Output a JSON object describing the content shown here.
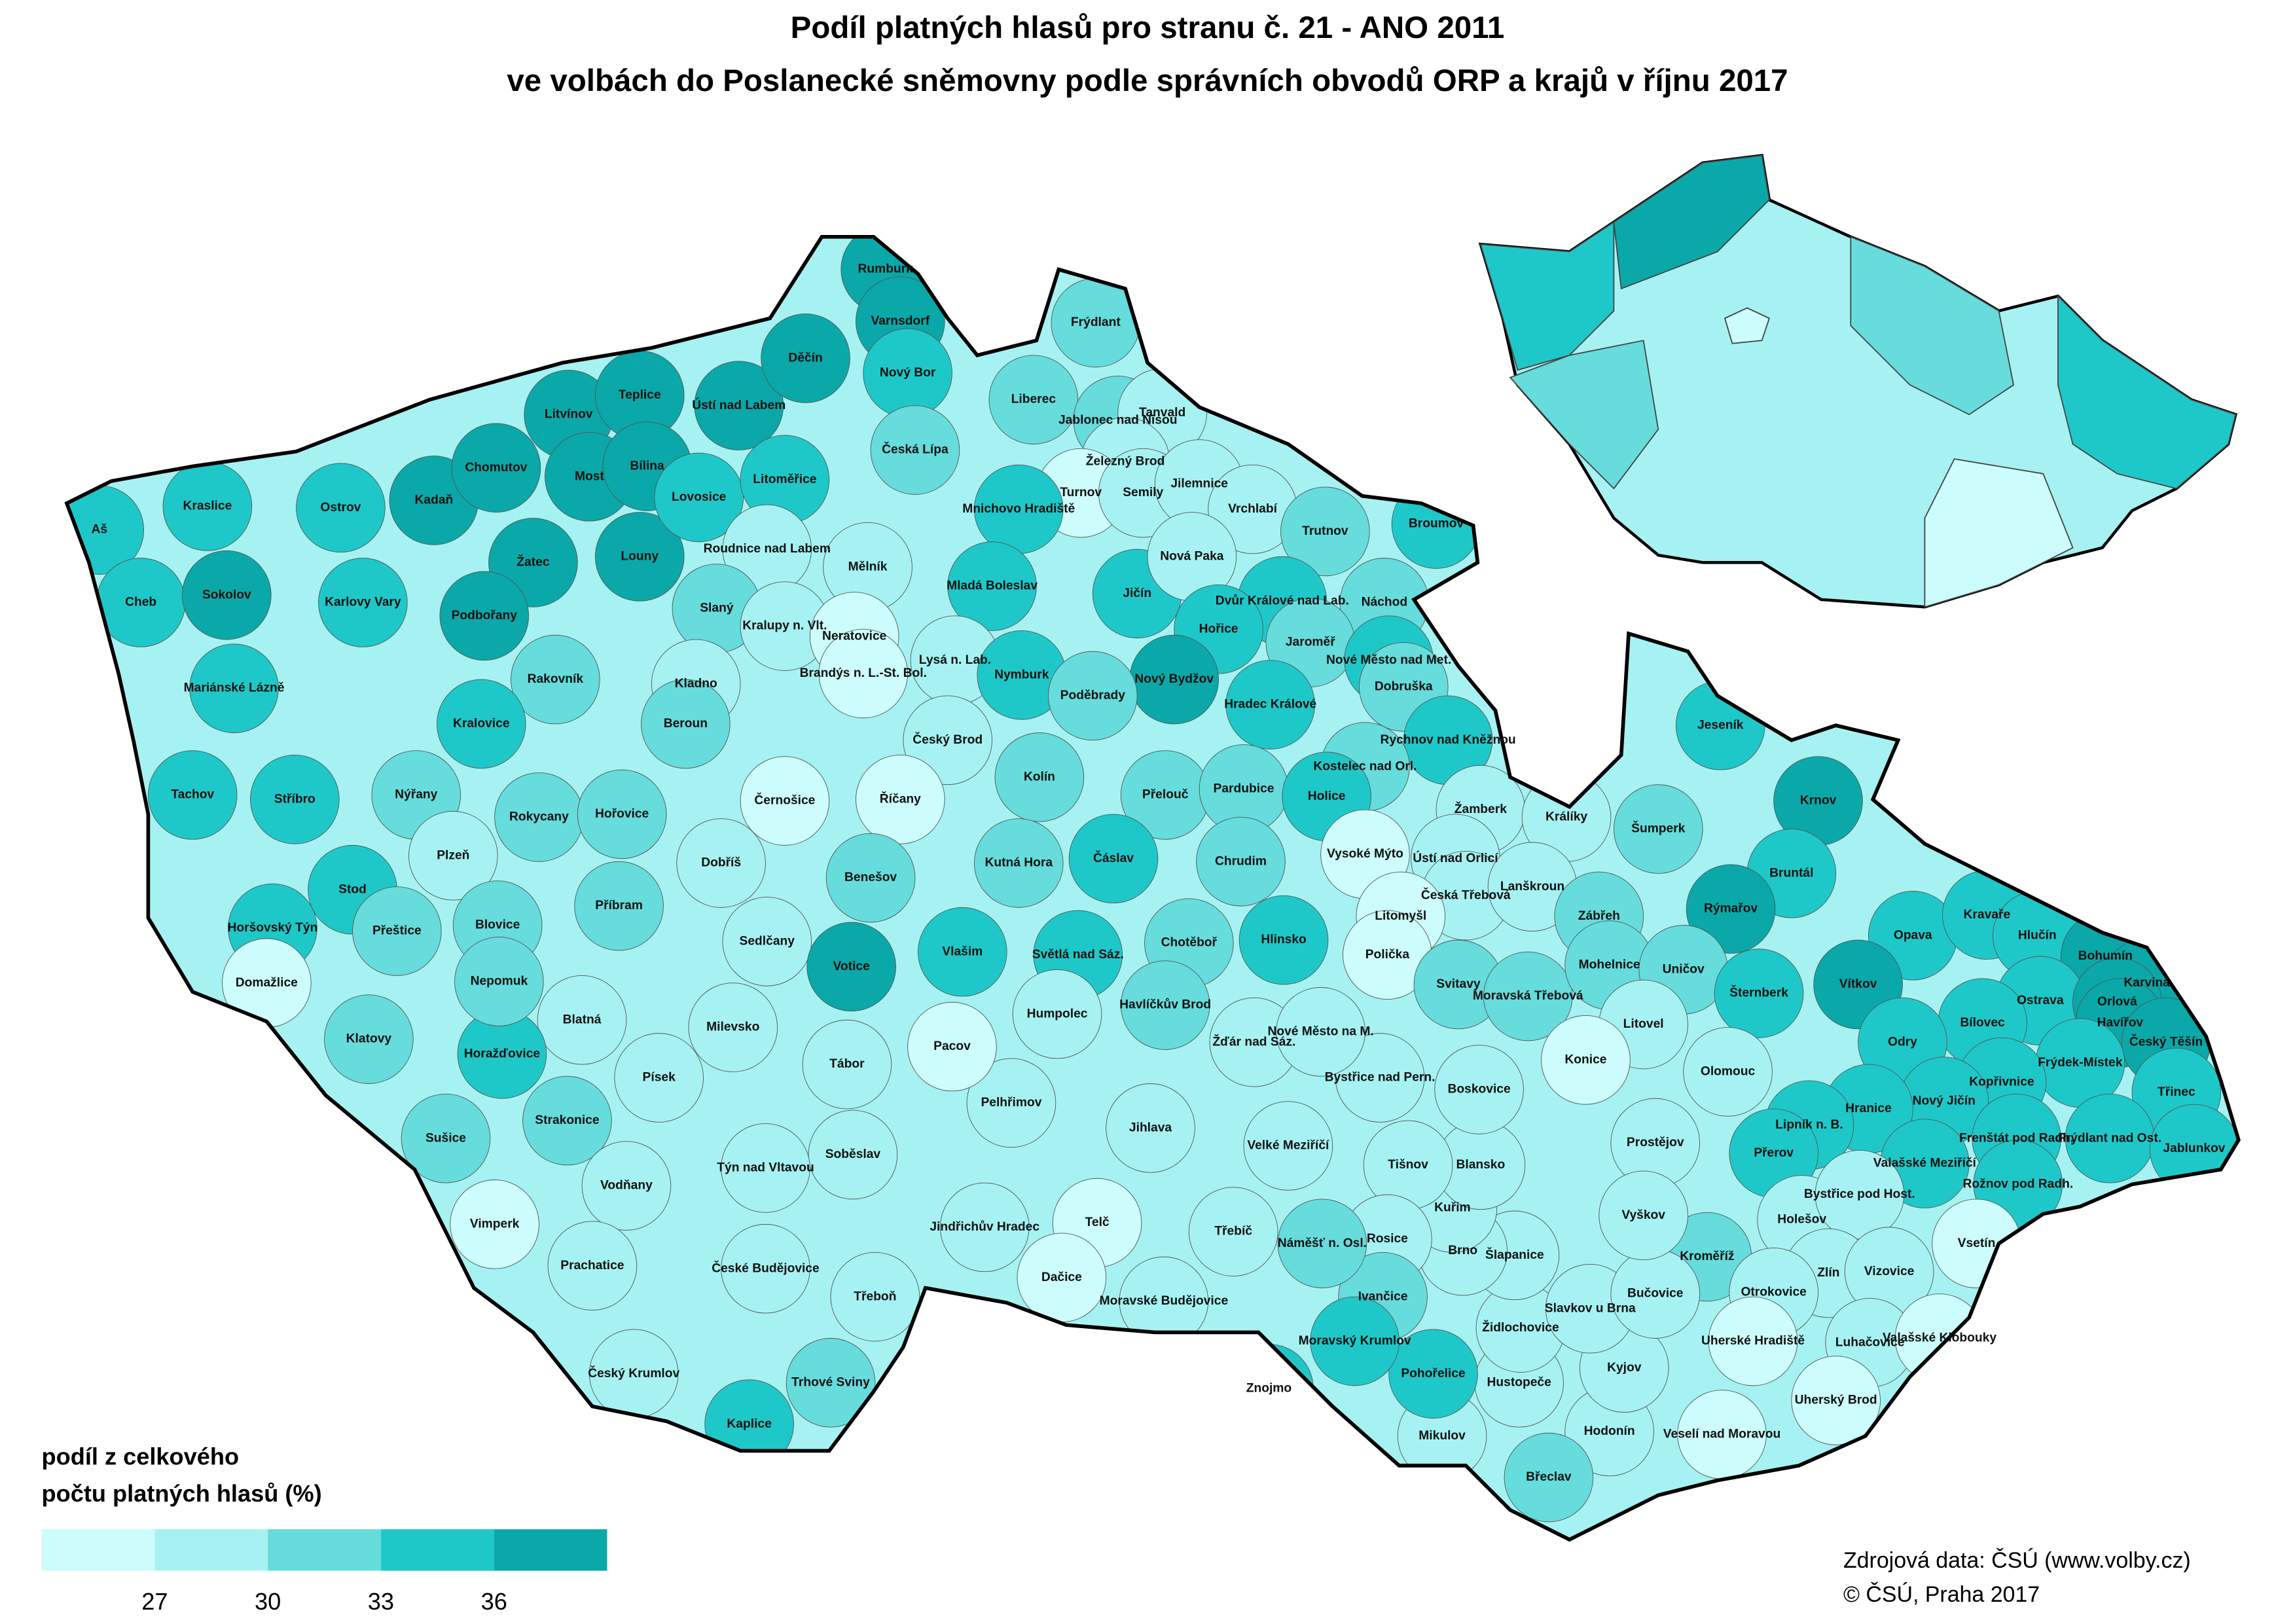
{
  "title": [
    "Podíl platných hlasů pro stranu č. 21 - ANO 2011",
    "ve volbách do Poslanecké sněmovny podle správních obvodů ORP a krajů v říjnu 2017"
  ],
  "legend": {
    "title": [
      "podíl z celkového",
      "počtu platných hlasů (%)"
    ],
    "colors": [
      "#ccfcfc",
      "#a6f2f2",
      "#66dcdc",
      "#1ec8c8",
      "#0aa8a8"
    ],
    "lim": [
      24,
      39
    ],
    "ticks": [
      27,
      30,
      33,
      36
    ]
  },
  "source": [
    "Zdrojová data: ČSÚ (www.volby.cz)",
    "© ČSÚ, Praha 2017"
  ],
  "orp": [
    {
      "name": "Aš",
      "color": "#1ec8c8"
    },
    {
      "name": "Cheb",
      "color": "#1ec8c8"
    },
    {
      "name": "Kraslice",
      "color": "#1ec8c8"
    },
    {
      "name": "Sokolov",
      "color": "#0aa8a8"
    },
    {
      "name": "Ostrov",
      "color": "#1ec8c8"
    },
    {
      "name": "Karlovy Vary",
      "color": "#1ec8c8"
    },
    {
      "name": "Mariánské Lázně",
      "color": "#1ec8c8"
    },
    {
      "name": "Kadaň",
      "color": "#0aa8a8"
    },
    {
      "name": "Chomutov",
      "color": "#0aa8a8"
    },
    {
      "name": "Litvínov",
      "color": "#0aa8a8"
    },
    {
      "name": "Most",
      "color": "#0aa8a8"
    },
    {
      "name": "Teplice",
      "color": "#0aa8a8"
    },
    {
      "name": "Bílina",
      "color": "#0aa8a8"
    },
    {
      "name": "Ústí nad Labem",
      "color": "#0aa8a8"
    },
    {
      "name": "Děčín",
      "color": "#0aa8a8"
    },
    {
      "name": "Rumburk",
      "color": "#0aa8a8"
    },
    {
      "name": "Varnsdorf",
      "color": "#0aa8a8"
    },
    {
      "name": "Žatec",
      "color": "#0aa8a8"
    },
    {
      "name": "Louny",
      "color": "#0aa8a8"
    },
    {
      "name": "Lovosice",
      "color": "#1ec8c8"
    },
    {
      "name": "Litoměřice",
      "color": "#1ec8c8"
    },
    {
      "name": "Podbořany",
      "color": "#0aa8a8"
    },
    {
      "name": "Roudnice nad Labem",
      "color": "#a6f2f2"
    },
    {
      "name": "Mělník",
      "color": "#a6f2f2"
    },
    {
      "name": "Nový Bor",
      "color": "#1ec8c8"
    },
    {
      "name": "Česká Lípa",
      "color": "#66dcdc"
    },
    {
      "name": "Liberec",
      "color": "#66dcdc"
    },
    {
      "name": "Jablonec nad Nisou",
      "color": "#66dcdc"
    },
    {
      "name": "Frýdlant",
      "color": "#66dcdc"
    },
    {
      "name": "Tanvald",
      "color": "#a6f2f2"
    },
    {
      "name": "Železný Brod",
      "color": "#a6f2f2"
    },
    {
      "name": "Turnov",
      "color": "#ccfcfc"
    },
    {
      "name": "Semily",
      "color": "#a6f2f2"
    },
    {
      "name": "Jilemnice",
      "color": "#a6f2f2"
    },
    {
      "name": "Vrchlabí",
      "color": "#a6f2f2"
    },
    {
      "name": "Trutnov",
      "color": "#66dcdc"
    },
    {
      "name": "Broumov",
      "color": "#1ec8c8"
    },
    {
      "name": "Mnichovo Hradiště",
      "color": "#1ec8c8"
    },
    {
      "name": "Mladá Boleslav",
      "color": "#1ec8c8"
    },
    {
      "name": "Jičín",
      "color": "#1ec8c8"
    },
    {
      "name": "Nová Paka",
      "color": "#a6f2f2"
    },
    {
      "name": "Dvůr Králové nad Lab.",
      "color": "#1ec8c8"
    },
    {
      "name": "Náchod",
      "color": "#66dcdc"
    },
    {
      "name": "Jaroměř",
      "color": "#66dcdc"
    },
    {
      "name": "Hořice",
      "color": "#1ec8c8"
    },
    {
      "name": "Nové Město nad Met.",
      "color": "#1ec8c8"
    },
    {
      "name": "Dobruška",
      "color": "#66dcdc"
    },
    {
      "name": "Nový Bydžov",
      "color": "#0aa8a8"
    },
    {
      "name": "Hradec Králové",
      "color": "#1ec8c8"
    },
    {
      "name": "Rychnov nad Kněžnou",
      "color": "#1ec8c8"
    },
    {
      "name": "Kostelec nad Orl.",
      "color": "#66dcdc"
    },
    {
      "name": "Slaný",
      "color": "#66dcdc"
    },
    {
      "name": "Kralupy n. Vlt.",
      "color": "#a6f2f2"
    },
    {
      "name": "Neratovice",
      "color": "#ccfcfc"
    },
    {
      "name": "Brandýs n. L.-St. Bol.",
      "color": "#ccfcfc"
    },
    {
      "name": "Lysá n. Lab.",
      "color": "#a6f2f2"
    },
    {
      "name": "Nymburk",
      "color": "#1ec8c8"
    },
    {
      "name": "Poděbrady",
      "color": "#66dcdc"
    },
    {
      "name": "Rakovník",
      "color": "#66dcdc"
    },
    {
      "name": "Kladno",
      "color": "#a6f2f2"
    },
    {
      "name": "Český Brod",
      "color": "#a6f2f2"
    },
    {
      "name": "Kralovice",
      "color": "#1ec8c8"
    },
    {
      "name": "Beroun",
      "color": "#66dcdc"
    },
    {
      "name": "Kolín",
      "color": "#66dcdc"
    },
    {
      "name": "Černošice",
      "color": "#ccfcfc"
    },
    {
      "name": "Říčany",
      "color": "#ccfcfc"
    },
    {
      "name": "Přelouč",
      "color": "#66dcdc"
    },
    {
      "name": "Pardubice",
      "color": "#66dcdc"
    },
    {
      "name": "Holice",
      "color": "#1ec8c8"
    },
    {
      "name": "Žamberk",
      "color": "#a6f2f2"
    },
    {
      "name": "Králíky",
      "color": "#a6f2f2"
    },
    {
      "name": "Vysoké Mýto",
      "color": "#ccfcfc"
    },
    {
      "name": "Ústí nad Orlicí",
      "color": "#a6f2f2"
    },
    {
      "name": "Chrudim",
      "color": "#66dcdc"
    },
    {
      "name": "Česká Třebová",
      "color": "#a6f2f2"
    },
    {
      "name": "Lanškroun",
      "color": "#a6f2f2"
    },
    {
      "name": "Litomyšl",
      "color": "#ccfcfc"
    },
    {
      "name": "Tachov",
      "color": "#1ec8c8"
    },
    {
      "name": "Stříbro",
      "color": "#1ec8c8"
    },
    {
      "name": "Nýřany",
      "color": "#66dcdc"
    },
    {
      "name": "Rokycany",
      "color": "#66dcdc"
    },
    {
      "name": "Hořovice",
      "color": "#66dcdc"
    },
    {
      "name": "Dobříš",
      "color": "#a6f2f2"
    },
    {
      "name": "Plzeň",
      "color": "#a6f2f2"
    },
    {
      "name": "Stod",
      "color": "#1ec8c8"
    },
    {
      "name": "Příbram",
      "color": "#66dcdc"
    },
    {
      "name": "Benešov",
      "color": "#66dcdc"
    },
    {
      "name": "Kutná Hora",
      "color": "#66dcdc"
    },
    {
      "name": "Čáslav",
      "color": "#1ec8c8"
    },
    {
      "name": "Horšovský Týn",
      "color": "#1ec8c8"
    },
    {
      "name": "Přeštice",
      "color": "#66dcdc"
    },
    {
      "name": "Blovice",
      "color": "#66dcdc"
    },
    {
      "name": "Sedlčany",
      "color": "#a6f2f2"
    },
    {
      "name": "Votice",
      "color": "#0aa8a8"
    },
    {
      "name": "Vlašim",
      "color": "#1ec8c8"
    },
    {
      "name": "Světlá nad Sáz.",
      "color": "#1ec8c8"
    },
    {
      "name": "Chotěboř",
      "color": "#66dcdc"
    },
    {
      "name": "Hlinsko",
      "color": "#1ec8c8"
    },
    {
      "name": "Polička",
      "color": "#ccfcfc"
    },
    {
      "name": "Svitavy",
      "color": "#66dcdc"
    },
    {
      "name": "Moravská Třebová",
      "color": "#66dcdc"
    },
    {
      "name": "Zábřeh",
      "color": "#66dcdc"
    },
    {
      "name": "Šumperk",
      "color": "#66dcdc"
    },
    {
      "name": "Jeseník",
      "color": "#1ec8c8"
    },
    {
      "name": "Krnov",
      "color": "#0aa8a8"
    },
    {
      "name": "Bruntál",
      "color": "#1ec8c8"
    },
    {
      "name": "Rýmařov",
      "color": "#0aa8a8"
    },
    {
      "name": "Mohelnice",
      "color": "#66dcdc"
    },
    {
      "name": "Uničov",
      "color": "#66dcdc"
    },
    {
      "name": "Šternberk",
      "color": "#1ec8c8"
    },
    {
      "name": "Opava",
      "color": "#1ec8c8"
    },
    {
      "name": "Kravaře",
      "color": "#1ec8c8"
    },
    {
      "name": "Hlučín",
      "color": "#1ec8c8"
    },
    {
      "name": "Bohumín",
      "color": "#0aa8a8"
    },
    {
      "name": "Karviná",
      "color": "#0aa8a8"
    },
    {
      "name": "Vítkov",
      "color": "#0aa8a8"
    },
    {
      "name": "Ostrava",
      "color": "#1ec8c8"
    },
    {
      "name": "Orlová",
      "color": "#0aa8a8"
    },
    {
      "name": "Havířov",
      "color": "#0aa8a8"
    },
    {
      "name": "Český Těšín",
      "color": "#0aa8a8"
    },
    {
      "name": "Bílovec",
      "color": "#1ec8c8"
    },
    {
      "name": "Odry",
      "color": "#1ec8c8"
    },
    {
      "name": "Frýdek-Místek",
      "color": "#1ec8c8"
    },
    {
      "name": "Kopřivnice",
      "color": "#1ec8c8"
    },
    {
      "name": "Třinec",
      "color": "#1ec8c8"
    },
    {
      "name": "Nový Jičín",
      "color": "#1ec8c8"
    },
    {
      "name": "Hranice",
      "color": "#1ec8c8"
    },
    {
      "name": "Frenštát pod Radh.",
      "color": "#1ec8c8"
    },
    {
      "name": "Frýdlant nad Ost.",
      "color": "#1ec8c8"
    },
    {
      "name": "Jablunkov",
      "color": "#1ec8c8"
    },
    {
      "name": "Valašské Meziříčí",
      "color": "#1ec8c8"
    },
    {
      "name": "Rožnov pod Radh.",
      "color": "#1ec8c8"
    },
    {
      "name": "Lipník n. B.",
      "color": "#1ec8c8"
    },
    {
      "name": "Přerov",
      "color": "#1ec8c8"
    },
    {
      "name": "Olomouc",
      "color": "#a6f2f2"
    },
    {
      "name": "Litovel",
      "color": "#a6f2f2"
    },
    {
      "name": "Konice",
      "color": "#ccfcfc"
    },
    {
      "name": "Prostějov",
      "color": "#a6f2f2"
    },
    {
      "name": "Holešov",
      "color": "#a6f2f2"
    },
    {
      "name": "Bystřice pod Host.",
      "color": "#a6f2f2"
    },
    {
      "name": "Vsetín",
      "color": "#ccfcfc"
    },
    {
      "name": "Kroměříž",
      "color": "#66dcdc"
    },
    {
      "name": "Zlín",
      "color": "#a6f2f2"
    },
    {
      "name": "Vizovice",
      "color": "#a6f2f2"
    },
    {
      "name": "Otrokovice",
      "color": "#a6f2f2"
    },
    {
      "name": "Luhačovice",
      "color": "#a6f2f2"
    },
    {
      "name": "Valašské Klobouky",
      "color": "#ccfcfc"
    },
    {
      "name": "Uherské Hradiště",
      "color": "#ccfcfc"
    },
    {
      "name": "Uherský Brod",
      "color": "#ccfcfc"
    },
    {
      "name": "Veselí nad Moravou",
      "color": "#ccfcfc"
    },
    {
      "name": "Hodonín",
      "color": "#a6f2f2"
    },
    {
      "name": "Kyjov",
      "color": "#a6f2f2"
    },
    {
      "name": "Břeclav",
      "color": "#66dcdc"
    },
    {
      "name": "Mikulov",
      "color": "#a6f2f2"
    },
    {
      "name": "Hustopeče",
      "color": "#a6f2f2"
    },
    {
      "name": "Pohořelice",
      "color": "#1ec8c8"
    },
    {
      "name": "Židlochovice",
      "color": "#a6f2f2"
    },
    {
      "name": "Slavkov u Brna",
      "color": "#a6f2f2"
    },
    {
      "name": "Bučovice",
      "color": "#a6f2f2"
    },
    {
      "name": "Vyškov",
      "color": "#a6f2f2"
    },
    {
      "name": "Šlapanice",
      "color": "#a6f2f2"
    },
    {
      "name": "Brno",
      "color": "#a6f2f2"
    },
    {
      "name": "Kuřim",
      "color": "#a6f2f2"
    },
    {
      "name": "Blansko",
      "color": "#a6f2f2"
    },
    {
      "name": "Tišnov",
      "color": "#a6f2f2"
    },
    {
      "name": "Boskovice",
      "color": "#a6f2f2"
    },
    {
      "name": "Bystřice nad Pern.",
      "color": "#a6f2f2"
    },
    {
      "name": "Rosice",
      "color": "#a6f2f2"
    },
    {
      "name": "Ivančice",
      "color": "#66dcdc"
    },
    {
      "name": "Náměšť n. Osl.",
      "color": "#66dcdc"
    },
    {
      "name": "Moravský Krumlov",
      "color": "#1ec8c8"
    },
    {
      "name": "Znojmo",
      "color": "#1ec8c8"
    },
    {
      "name": "Moravské Budějovice",
      "color": "#a6f2f2"
    },
    {
      "name": "Třebíč",
      "color": "#a6f2f2"
    },
    {
      "name": "Velké Meziříčí",
      "color": "#a6f2f2"
    },
    {
      "name": "Žďár nad Sáz.",
      "color": "#a6f2f2"
    },
    {
      "name": "Nové Město na M.",
      "color": "#a6f2f2"
    },
    {
      "name": "Havlíčkův Brod",
      "color": "#66dcdc"
    },
    {
      "name": "Jihlava",
      "color": "#a6f2f2"
    },
    {
      "name": "Humpolec",
      "color": "#a6f2f2"
    },
    {
      "name": "Pelhřimov",
      "color": "#a6f2f2"
    },
    {
      "name": "Pacov",
      "color": "#ccfcfc"
    },
    {
      "name": "Telč",
      "color": "#ccfcfc"
    },
    {
      "name": "Dačice",
      "color": "#ccfcfc"
    },
    {
      "name": "Jindřichův Hradec",
      "color": "#a6f2f2"
    },
    {
      "name": "Třeboň",
      "color": "#a6f2f2"
    },
    {
      "name": "Soběslav",
      "color": "#a6f2f2"
    },
    {
      "name": "Tábor",
      "color": "#a6f2f2"
    },
    {
      "name": "Týn nad Vltavou",
      "color": "#a6f2f2"
    },
    {
      "name": "Milevsko",
      "color": "#a6f2f2"
    },
    {
      "name": "Písek",
      "color": "#a6f2f2"
    },
    {
      "name": "Blatná",
      "color": "#a6f2f2"
    },
    {
      "name": "Strakonice",
      "color": "#66dcdc"
    },
    {
      "name": "Vodňany",
      "color": "#a6f2f2"
    },
    {
      "name": "České Budějovice",
      "color": "#a6f2f2"
    },
    {
      "name": "Trhové Sviny",
      "color": "#66dcdc"
    },
    {
      "name": "Kaplice",
      "color": "#1ec8c8"
    },
    {
      "name": "Český Krumlov",
      "color": "#a6f2f2"
    },
    {
      "name": "Prachatice",
      "color": "#a6f2f2"
    },
    {
      "name": "Vimperk",
      "color": "#ccfcfc"
    },
    {
      "name": "Sušice",
      "color": "#66dcdc"
    },
    {
      "name": "Klatovy",
      "color": "#66dcdc"
    },
    {
      "name": "Horažďovice",
      "color": "#1ec8c8"
    },
    {
      "name": "Nepomuk",
      "color": "#66dcdc"
    },
    {
      "name": "Domažlice",
      "color": "#ccfcfc"
    }
  ]
}
